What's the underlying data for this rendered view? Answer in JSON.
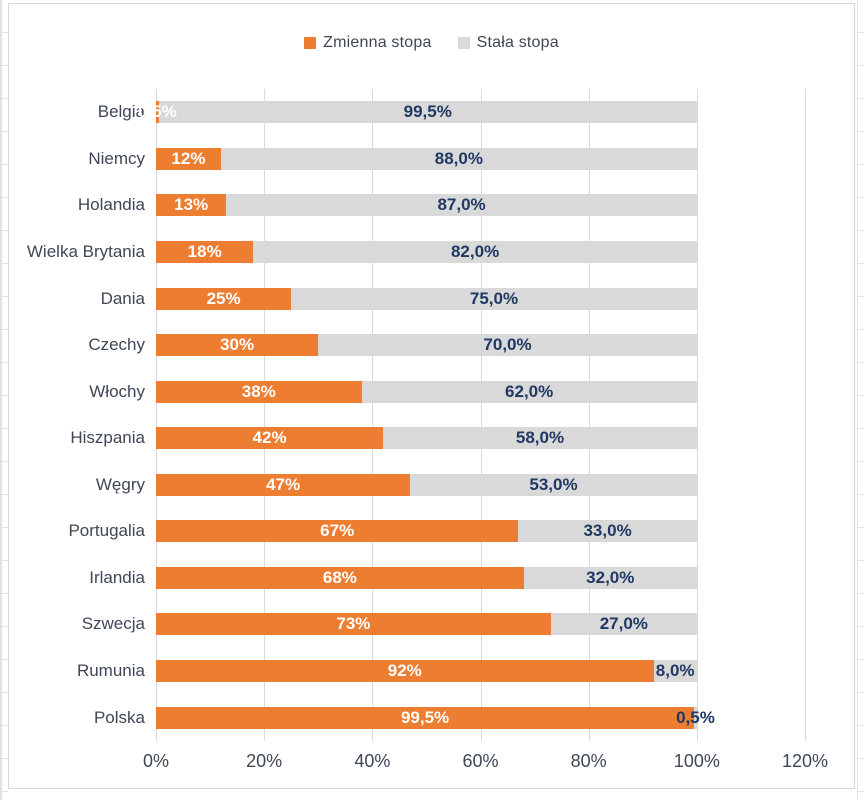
{
  "colors": {
    "zmienna": "#ED7D31",
    "stala": "#D9D9D9",
    "value_label_on_orange": "#FFFFFF",
    "value_label_on_gray": "#1F3864",
    "axis_text": "#3F4756",
    "gridline": "#D9D9D9"
  },
  "legend": {
    "items": [
      {
        "label": "Zmienna stopa",
        "color": "#ED7D31"
      },
      {
        "label": "Stała stopa",
        "color": "#D9D9D9"
      }
    ]
  },
  "axis": {
    "ticks": [
      "0%",
      "20%",
      "40%",
      "60%",
      "80%",
      "100%",
      "120%"
    ]
  },
  "chart_data": {
    "type": "bar",
    "orientation": "horizontal",
    "stacked": true,
    "title": "",
    "xlabel": "",
    "ylabel": "",
    "xlim": [
      0,
      120
    ],
    "grid": true,
    "legend_position": "top-center",
    "categories": [
      "Belgia",
      "Niemcy",
      "Holandia",
      "Wielka Brytania",
      "Dania",
      "Czechy",
      "Włochy",
      "Hiszpania",
      "Węgry",
      "Portugalia",
      "Irlandia",
      "Szwecja",
      "Rumunia",
      "Polska"
    ],
    "series": [
      {
        "name": "Zmienna stopa",
        "color": "#ED7D31",
        "values": [
          0.5,
          12,
          13,
          18,
          25,
          30,
          38,
          42,
          47,
          67,
          68,
          73,
          92,
          99.5
        ]
      },
      {
        "name": "Stała stopa",
        "color": "#D9D9D9",
        "values": [
          99.5,
          88,
          87,
          82,
          75,
          70,
          62,
          58,
          53,
          33,
          32,
          27,
          8,
          0.5
        ]
      }
    ],
    "labels": {
      "zmienna": [
        "0,5%",
        "12%",
        "13%",
        "18%",
        "25%",
        "30%",
        "38%",
        "42%",
        "47%",
        "67%",
        "68%",
        "73%",
        "92%",
        "99,5%"
      ],
      "stala": [
        "99,5%",
        "88,0%",
        "87,0%",
        "82,0%",
        "75,0%",
        "70,0%",
        "62,0%",
        "58,0%",
        "53,0%",
        "33,0%",
        "32,0%",
        "27,0%",
        "8,0%",
        "0,5%"
      ]
    }
  }
}
